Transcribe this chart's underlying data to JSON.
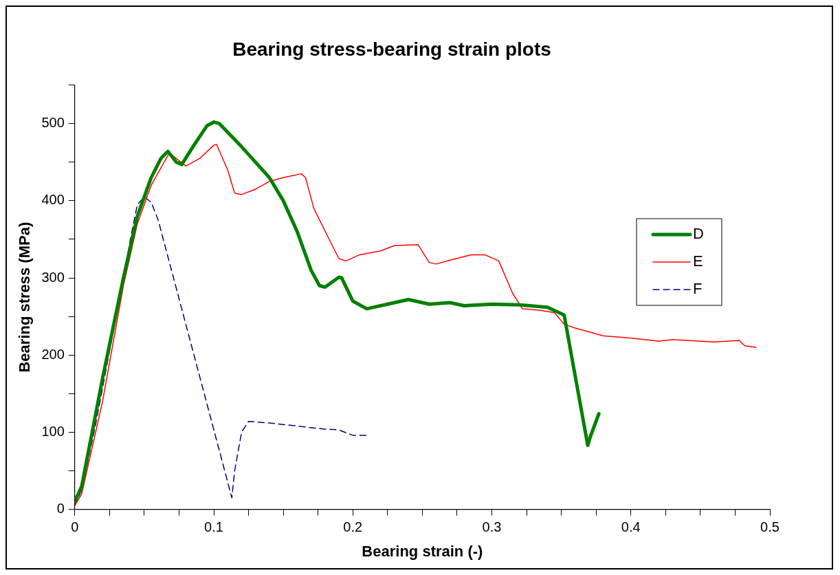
{
  "chart_data": {
    "type": "line",
    "title": "Bearing stress-bearing strain plots",
    "xlabel": "Bearing strain (-)",
    "ylabel": "Bearing stress (MPa)",
    "xlim": [
      0,
      0.5
    ],
    "xticks": [
      0,
      {
        "value": 0.025,
        "label": null
      },
      {
        "value": 0.05,
        "label": null
      },
      {
        "value": 0.075,
        "label": null
      },
      0.1,
      {
        "value": 0.125,
        "label": null
      },
      {
        "value": 0.15,
        "label": null
      },
      {
        "value": 0.175,
        "label": null
      },
      0.2,
      {
        "value": 0.225,
        "label": null
      },
      {
        "value": 0.25,
        "label": null
      },
      {
        "value": 0.275,
        "label": null
      },
      0.3,
      {
        "value": 0.325,
        "label": null
      },
      {
        "value": 0.35,
        "label": null
      },
      {
        "value": 0.375,
        "label": null
      },
      0.4,
      {
        "value": 0.425,
        "label": null
      },
      {
        "value": 0.45,
        "label": null
      },
      {
        "value": 0.475,
        "label": null
      },
      0.5
    ],
    "ylim": [
      0,
      550
    ],
    "yticks": [
      0,
      {
        "value": 50,
        "label": null
      },
      100,
      {
        "value": 150,
        "label": null
      },
      200,
      {
        "value": 250,
        "label": null
      },
      300,
      {
        "value": 350,
        "label": null
      },
      400,
      {
        "value": 450,
        "label": null
      },
      500,
      {
        "value": 550,
        "label": null
      }
    ],
    "grid": false,
    "legend": "right",
    "marker": "none",
    "series": [
      {
        "name": "D",
        "color": "#008000",
        "x": [
          0,
          0.005,
          0.02,
          0.035,
          0.045,
          0.055,
          0.062,
          0.067,
          0.073,
          0.077,
          0.085,
          0.095,
          0.1,
          0.104,
          0.12,
          0.14,
          0.15,
          0.16,
          0.17,
          0.176,
          0.18,
          0.19,
          0.192,
          0.2,
          0.21,
          0.225,
          0.24,
          0.255,
          0.27,
          0.28,
          0.3,
          0.32,
          0.34,
          0.352,
          0.369,
          0.371,
          0.377
        ],
        "values": [
          10,
          30,
          170,
          300,
          380,
          430,
          455,
          464,
          450,
          447,
          470,
          497,
          502,
          500,
          470,
          430,
          400,
          360,
          310,
          290,
          288,
          301,
          300,
          270,
          260,
          266,
          272,
          266,
          268,
          264,
          266,
          265,
          262,
          252,
          83,
          95,
          124
        ]
      },
      {
        "name": "E",
        "color": "#ff0000",
        "x": [
          0,
          0.005,
          0.02,
          0.035,
          0.045,
          0.055,
          0.068,
          0.08,
          0.09,
          0.1,
          0.102,
          0.11,
          0.115,
          0.12,
          0.13,
          0.14,
          0.15,
          0.163,
          0.166,
          0.172,
          0.183,
          0.19,
          0.195,
          0.205,
          0.22,
          0.23,
          0.247,
          0.255,
          0.26,
          0.27,
          0.285,
          0.295,
          0.305,
          0.315,
          0.322,
          0.335,
          0.345,
          0.352,
          0.36,
          0.37,
          0.38,
          0.4,
          0.42,
          0.43,
          0.45,
          0.46,
          0.478,
          0.482,
          0.49
        ],
        "values": [
          5,
          20,
          140,
          290,
          370,
          420,
          462,
          445,
          455,
          472,
          473,
          440,
          410,
          408,
          415,
          425,
          430,
          435,
          430,
          390,
          350,
          325,
          322,
          330,
          335,
          342,
          343,
          320,
          318,
          323,
          330,
          330,
          322,
          280,
          260,
          258,
          255,
          240,
          235,
          230,
          225,
          222,
          218,
          220,
          218,
          217,
          219,
          212,
          210
        ]
      },
      {
        "name": "F",
        "color": "#000080",
        "line_style": "dashed",
        "x": [
          0,
          0.005,
          0.015,
          0.035,
          0.04,
          0.045,
          0.05,
          0.055,
          0.06,
          0.113,
          0.115,
          0.12,
          0.125,
          0.14,
          0.16,
          0.18,
          0.19,
          0.2,
          0.21
        ],
        "values": [
          5,
          25,
          110,
          300,
          350,
          395,
          405,
          398,
          375,
          15,
          50,
          100,
          114,
          112,
          108,
          104,
          103,
          96,
          96
        ]
      }
    ]
  }
}
